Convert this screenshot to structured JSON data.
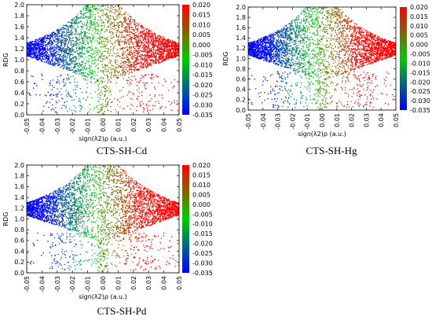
{
  "chart_data": [
    {
      "type": "scatter",
      "caption": "CTS-SH-Cd",
      "xlabel": "sign(λ2)ρ (a.u.)",
      "ylabel": "RDG",
      "xlim": [
        -0.05,
        0.05
      ],
      "ylim": [
        0.0,
        2.0
      ],
      "xticks": [
        "-0.05",
        "-0.04",
        "-0.03",
        "-0.02",
        "-0.01",
        "0.00",
        "0.01",
        "0.02",
        "0.03",
        "0.04",
        "0.05"
      ],
      "yticks": [
        "0.0",
        "0.2",
        "0.4",
        "0.6",
        "0.8",
        "1.0",
        "1.2",
        "1.4",
        "1.6",
        "1.8",
        "2.0"
      ],
      "colorbar": {
        "range": [
          -0.035,
          0.02
        ],
        "ticks": [
          "0.020",
          "0.015",
          "0.010",
          "0.005",
          "0.000",
          "-0.005",
          "-0.010",
          "-0.015",
          "-0.020",
          "-0.025",
          "-0.030",
          "-0.035"
        ],
        "colors": [
          "#ff0000",
          "#00cc00",
          "#0000ff"
        ]
      },
      "legend": "none",
      "grid": false
    },
    {
      "type": "scatter",
      "caption": "CTS-SH-Hg",
      "xlabel": "sign(λ2)ρ (a.u.)",
      "ylabel": "RDG",
      "xlim": [
        -0.05,
        0.05
      ],
      "ylim": [
        0.0,
        2.0
      ],
      "xticks": [
        "-0.05",
        "-0.04",
        "-0.03",
        "-0.02",
        "-0.01",
        "0.00",
        "0.01",
        "0.02",
        "0.03",
        "0.04",
        "0.05"
      ],
      "yticks": [
        "0.0",
        "0.2",
        "0.4",
        "0.6",
        "0.8",
        "1.0",
        "1.2",
        "1.4",
        "1.6",
        "1.8",
        "2.0"
      ],
      "colorbar": {
        "range": [
          -0.035,
          0.02
        ],
        "ticks": [
          "0.020",
          "0.015",
          "0.010",
          "0.005",
          "0.000",
          "-0.005",
          "-0.010",
          "-0.015",
          "-0.020",
          "-0.025",
          "-0.030",
          "-0.035"
        ],
        "colors": [
          "#ff0000",
          "#00cc00",
          "#0000ff"
        ]
      },
      "legend": "none",
      "grid": false
    },
    {
      "type": "scatter",
      "caption": "CTS-SH-Pd",
      "xlabel": "sign(λ2)ρ (a.u.)",
      "ylabel": "RDG",
      "xlim": [
        -0.05,
        0.05
      ],
      "ylim": [
        0.0,
        2.0
      ],
      "xticks": [
        "-0.05",
        "-0.04",
        "-0.03",
        "-0.02",
        "-0.01",
        "0.00",
        "0.01",
        "0.02",
        "0.03",
        "0.04",
        "0.05"
      ],
      "yticks": [
        "0.0",
        "0.2",
        "0.4",
        "0.6",
        "0.8",
        "1.0",
        "1.2",
        "1.4",
        "1.6",
        "1.8",
        "2.0"
      ],
      "colorbar": {
        "range": [
          -0.035,
          0.02
        ],
        "ticks": [
          "0.020",
          "0.015",
          "0.010",
          "0.005",
          "0.000",
          "-0.005",
          "-0.010",
          "-0.015",
          "-0.020",
          "-0.025",
          "-0.030",
          "-0.035"
        ],
        "colors": [
          "#ff0000",
          "#00cc00",
          "#0000ff"
        ]
      },
      "legend": "none",
      "grid": false
    }
  ]
}
